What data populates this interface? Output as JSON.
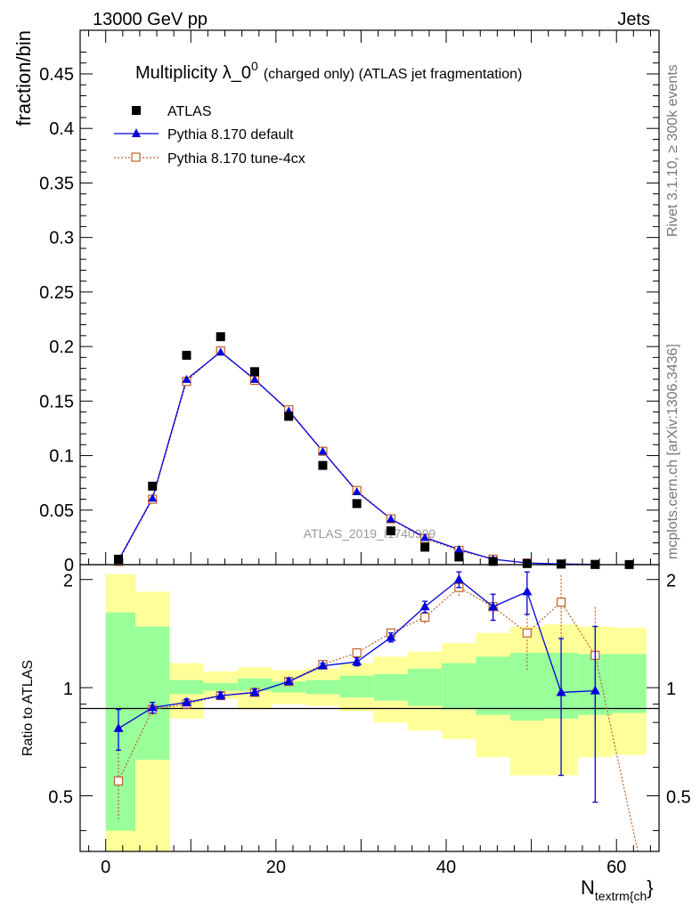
{
  "header": {
    "left": "13000 GeV pp",
    "right": "Jets"
  },
  "side_labels": {
    "rivet": "Rivet 3.1.10, ≥ 300k events",
    "mcplots": "mcplots.cern.ch [arXiv:1306.3436]"
  },
  "watermark": "ATLAS_2019_I1740909",
  "chart_data": {
    "type": "scatter",
    "title_main": "Multiplicity λ_0",
    "title_sup": "0",
    "title_sub": "(charged only) (ATLAS jet fragmentation)",
    "xlabel_main": "N",
    "xlabel_sub": "textrm{ch",
    "xlabel_tail": "}",
    "ylabel": "fraction/bin",
    "ratio_ylabel": "Ratio to ATLAS",
    "xlim": [
      -3,
      65
    ],
    "ylim": [
      0,
      0.49
    ],
    "ratio_ylim": [
      0.35,
      2.2
    ],
    "x_ticks": [
      0,
      20,
      40,
      60
    ],
    "y_ticks": [
      0,
      0.05,
      0.1,
      0.15,
      0.2,
      0.25,
      0.3,
      0.35,
      0.4,
      0.45
    ],
    "y_tick_labels": [
      "0",
      "0.05",
      "0.1",
      "0.15",
      "0.2",
      "0.25",
      "0.3",
      "0.35",
      "0.4",
      "0.45"
    ],
    "ratio_ticks": [
      0.5,
      1,
      2
    ],
    "ratio_tick_labels": [
      "0.5",
      "1",
      "2"
    ],
    "legend": [
      {
        "name": "ATLAS",
        "marker": "square",
        "color": "#000000"
      },
      {
        "name": "Pythia 8.170 default",
        "marker": "triangle",
        "color": "#0000dd"
      },
      {
        "name": "Pythia 8.170 tune-4cx",
        "marker": "open-square",
        "color": "#c0602a"
      }
    ],
    "bins": [
      [
        0,
        3.5
      ],
      [
        3.5,
        7.5
      ],
      [
        7.5,
        11.5
      ],
      [
        11.5,
        15.5
      ],
      [
        15.5,
        19.5
      ],
      [
        19.5,
        23.5
      ],
      [
        23.5,
        27.5
      ],
      [
        27.5,
        31.5
      ],
      [
        31.5,
        35.5
      ],
      [
        35.5,
        39.5
      ],
      [
        39.5,
        43.5
      ],
      [
        43.5,
        47.5
      ],
      [
        47.5,
        51.5
      ],
      [
        51.5,
        55.5
      ],
      [
        55.5,
        59.5
      ],
      [
        59.5,
        63.5
      ]
    ],
    "x": [
      1.5,
      5.5,
      9.5,
      13.5,
      17.5,
      21.5,
      25.5,
      29.5,
      33.5,
      37.5,
      41.5,
      45.5,
      49.5,
      53.5,
      57.5,
      61.5
    ],
    "atlas": [
      0.005,
      0.072,
      0.192,
      0.209,
      0.177,
      0.136,
      0.091,
      0.056,
      0.031,
      0.016,
      0.007,
      0.003,
      0.001,
      0.0005,
      0.0002,
      0.0001
    ],
    "series": [
      {
        "name": "Pythia 8.170 default",
        "values": [
          0.004,
          0.061,
          0.17,
          0.195,
          0.17,
          0.141,
          0.104,
          0.067,
          0.042,
          0.025,
          0.014,
          0.005,
          0.0015,
          0.0006,
          0.0002
        ]
      },
      {
        "name": "Pythia 8.170 tune-4cx",
        "values": [
          0.003,
          0.06,
          0.168,
          0.196,
          0.169,
          0.142,
          0.104,
          0.068,
          0.042,
          0.024,
          0.013,
          0.005,
          0.0015,
          0.0006,
          0.0002
        ]
      }
    ],
    "ratio_series": [
      {
        "name": "Pythia 8.170 default",
        "values": [
          0.77,
          0.88,
          0.91,
          0.95,
          0.97,
          1.04,
          1.15,
          1.18,
          1.38,
          1.68,
          2.0,
          1.68,
          1.85,
          0.97,
          0.98
        ],
        "err": [
          0.1,
          0.03,
          0.02,
          0.02,
          0.02,
          0.02,
          0.02,
          0.03,
          0.04,
          0.06,
          0.1,
          0.14,
          0.25,
          0.4,
          0.5
        ]
      },
      {
        "name": "Pythia 8.170 tune-4cx",
        "values": [
          0.55,
          0.87,
          0.9,
          0.95,
          0.97,
          1.04,
          1.16,
          1.25,
          1.42,
          1.57,
          1.9,
          1.68,
          1.42,
          1.73,
          1.23
        ],
        "err": [
          0.12,
          0.03,
          0.02,
          0.02,
          0.02,
          0.02,
          0.02,
          0.03,
          0.04,
          0.06,
          0.1,
          0.12,
          0.3,
          0.35,
          0.45
        ]
      }
    ],
    "ratio_tail": {
      "x": 62.5,
      "y": 0.3
    },
    "band_green": [
      [
        0.4,
        1.62
      ],
      [
        0.63,
        1.48
      ],
      [
        0.96,
        1.05
      ],
      [
        0.98,
        1.03
      ],
      [
        0.98,
        1.06
      ],
      [
        0.97,
        1.04
      ],
      [
        0.96,
        1.05
      ],
      [
        0.94,
        1.08
      ],
      [
        0.92,
        1.09
      ],
      [
        0.89,
        1.13
      ],
      [
        0.87,
        1.17
      ],
      [
        0.84,
        1.22
      ],
      [
        0.81,
        1.25
      ],
      [
        0.82,
        1.25
      ],
      [
        0.84,
        1.24
      ],
      [
        0.85,
        1.24
      ]
    ],
    "band_yellow": [
      [
        0.35,
        2.07
      ],
      [
        0.35,
        1.85
      ],
      [
        0.82,
        1.17
      ],
      [
        0.93,
        1.11
      ],
      [
        0.87,
        1.14
      ],
      [
        0.9,
        1.12
      ],
      [
        0.89,
        1.13
      ],
      [
        0.86,
        1.17
      ],
      [
        0.8,
        1.22
      ],
      [
        0.76,
        1.26
      ],
      [
        0.72,
        1.33
      ],
      [
        0.64,
        1.42
      ],
      [
        0.57,
        1.48
      ],
      [
        0.57,
        1.5
      ],
      [
        0.64,
        1.48
      ],
      [
        0.65,
        1.47
      ]
    ]
  }
}
